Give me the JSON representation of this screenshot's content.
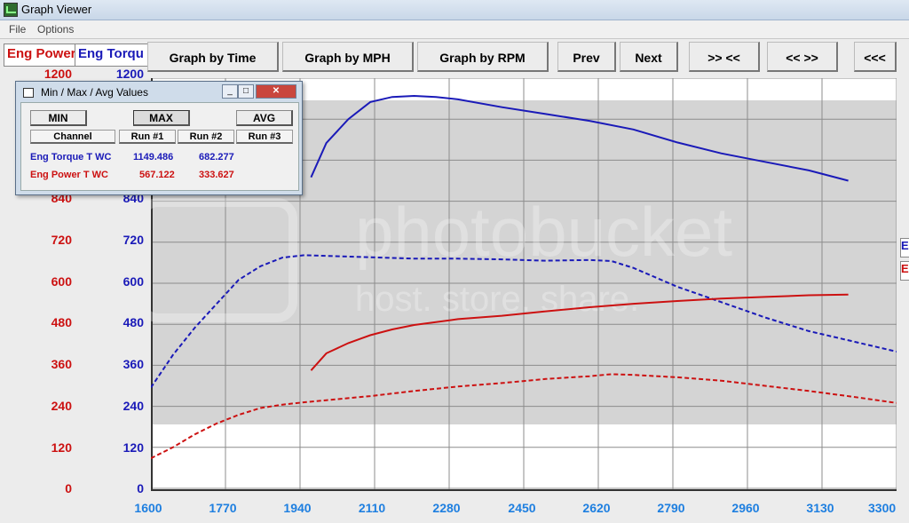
{
  "window": {
    "title": "Graph Viewer"
  },
  "menu": [
    "File",
    "Options"
  ],
  "axis_tabs": {
    "power": "Eng Power",
    "torque": "Eng Torqu"
  },
  "toolbar": [
    "Graph by Time",
    "Graph by MPH",
    "Graph by RPM",
    "Prev",
    "Next",
    ">> <<",
    "<< >>",
    "<<<"
  ],
  "colors": {
    "power": "#cc1111",
    "torque": "#1a1ab8",
    "x_axis": "#1e7fe0"
  },
  "y_left_ticks": [
    "1200",
    "840",
    "720",
    "600",
    "480",
    "360",
    "240",
    "120",
    "0"
  ],
  "y_right_ticks": [
    "1200",
    "840",
    "720",
    "600",
    "480",
    "360",
    "240",
    "120",
    "0"
  ],
  "x_ticks": [
    "1600",
    "1770",
    "1940",
    "2110",
    "2280",
    "2450",
    "2620",
    "2790",
    "2960",
    "3130",
    "3300"
  ],
  "side_tabs": [
    "E",
    "E"
  ],
  "watermark": {
    "line1": "photobucket",
    "line2": "host. store. share."
  },
  "dialog": {
    "title": "Min / Max / Avg Values",
    "buttons": {
      "min": "MIN",
      "max": "MAX",
      "avg": "AVG"
    },
    "headers": [
      "Channel",
      "Run #1",
      "Run #2",
      "Run #3"
    ],
    "rows": [
      {
        "channel": "Eng Torque T WC",
        "run1": "1149.486",
        "run2": "682.277",
        "run3": ""
      },
      {
        "channel": "Eng Power T WC",
        "run1": "567.122",
        "run2": "333.627",
        "run3": ""
      }
    ]
  },
  "chart_data": {
    "type": "line",
    "x_range": [
      1600,
      3300
    ],
    "y_range": [
      0,
      1200
    ],
    "grid": true,
    "series": [
      {
        "name": "Eng Torque T WC",
        "style": "solid",
        "color": "#1a1ab8",
        "x": [
          1965,
          2000,
          2050,
          2100,
          2150,
          2200,
          2250,
          2300,
          2400,
          2500,
          2600,
          2700,
          2800,
          2900,
          3000,
          3100,
          3190
        ],
        "y": [
          910,
          1010,
          1080,
          1130,
          1145,
          1148,
          1145,
          1138,
          1115,
          1095,
          1075,
          1050,
          1012,
          980,
          955,
          930,
          900
        ]
      },
      {
        "name": "Eng Torque T WC",
        "style": "dashed",
        "color": "#1a1ab8",
        "x": [
          1600,
          1650,
          1700,
          1750,
          1800,
          1850,
          1900,
          1950,
          2000,
          2100,
          2200,
          2300,
          2400,
          2500,
          2600,
          2650,
          2700,
          2800,
          2900,
          3000,
          3100,
          3200,
          3300
        ],
        "y": [
          295,
          390,
          470,
          540,
          610,
          650,
          675,
          682,
          680,
          676,
          672,
          672,
          670,
          666,
          668,
          665,
          645,
          590,
          545,
          500,
          460,
          430,
          400
        ]
      },
      {
        "name": "Eng Power T WC",
        "style": "solid",
        "color": "#cc1111",
        "x": [
          1965,
          2000,
          2050,
          2100,
          2150,
          2200,
          2300,
          2400,
          2500,
          2600,
          2700,
          2800,
          2900,
          3000,
          3100,
          3190
        ],
        "y": [
          345,
          395,
          425,
          448,
          465,
          478,
          495,
          505,
          518,
          530,
          540,
          548,
          555,
          560,
          565,
          567
        ]
      },
      {
        "name": "Eng Power T WC",
        "style": "dashed",
        "color": "#cc1111",
        "x": [
          1600,
          1650,
          1700,
          1750,
          1800,
          1850,
          1900,
          1950,
          2000,
          2100,
          2200,
          2300,
          2400,
          2500,
          2600,
          2650,
          2700,
          2800,
          2900,
          3000,
          3100,
          3200,
          3300
        ],
        "y": [
          88,
          120,
          158,
          190,
          215,
          235,
          245,
          252,
          258,
          270,
          285,
          298,
          308,
          320,
          328,
          334,
          332,
          325,
          315,
          300,
          285,
          268,
          250
        ]
      }
    ]
  }
}
